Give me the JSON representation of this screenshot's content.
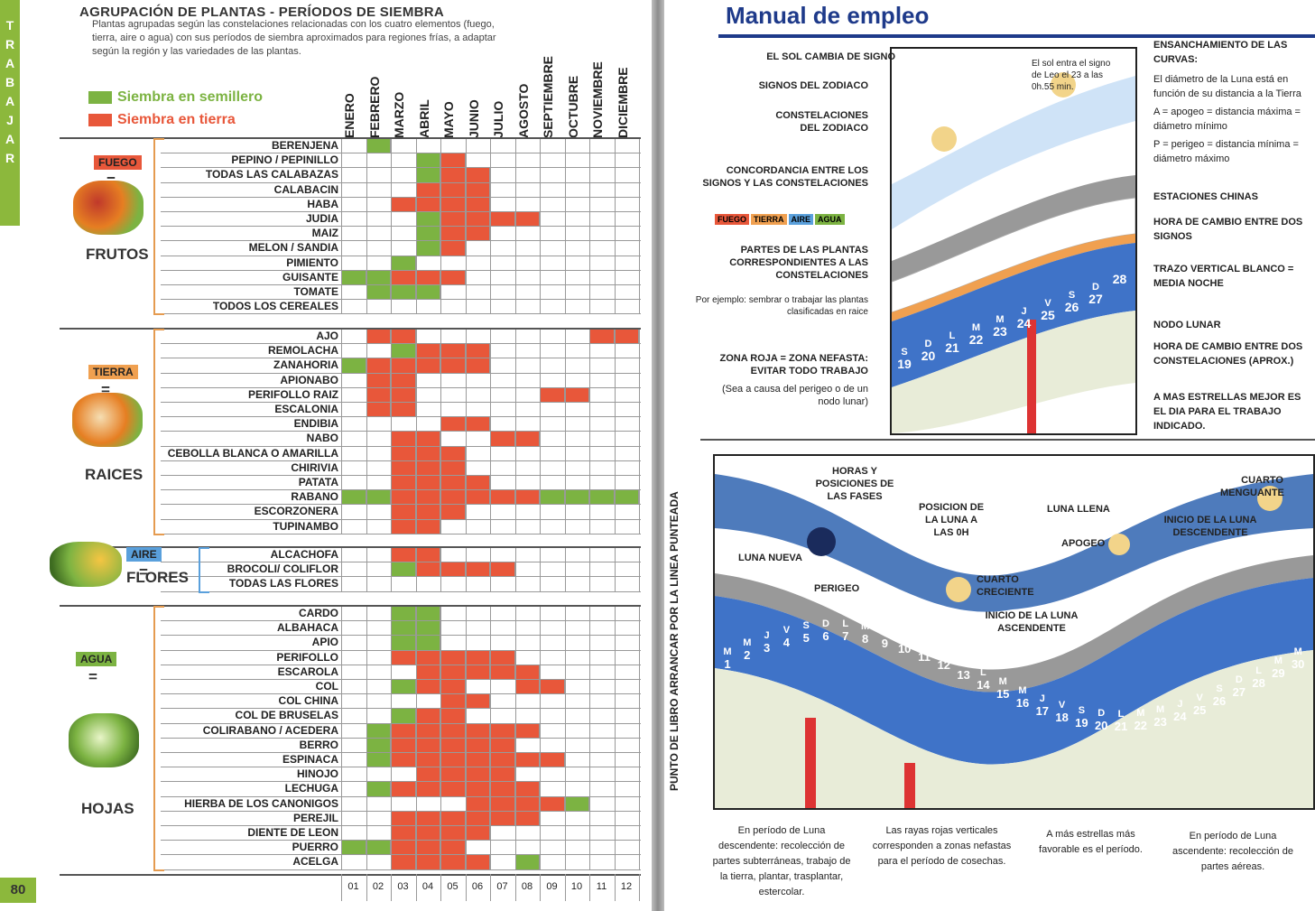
{
  "left": {
    "sidebar_letters": [
      "T",
      "R",
      "A",
      "B",
      "A",
      "J",
      "A",
      "R"
    ],
    "title": "AGRUPACIÓN DE PLANTAS - PERÍODOS DE SIEMBRA",
    "intro": "Plantas agrupadas según las constelaciones relacionadas con los cuatro elementos (fuego, tierra, aire o agua) con sus períodos de siembra aproximados para regiones frías, a adaptar según la región y las variedades de las plantas.",
    "legend": [
      {
        "label": "Siembra en semillero",
        "color": "#7cb342"
      },
      {
        "label": "Siembra en tierra",
        "color": "#e8573a"
      }
    ],
    "months": [
      "ENERO",
      "FEBRERO",
      "MARZO",
      "ABRIL",
      "MAYO",
      "JUNIO",
      "JULIO",
      "AGOSTO",
      "SEPTIEMBRE",
      "OCTUBRE",
      "NOVIEMBRE",
      "DICIEMBRE"
    ],
    "month_numbers": [
      "01",
      "02",
      "03",
      "04",
      "05",
      "06",
      "07",
      "08",
      "09",
      "10",
      "11",
      "12"
    ],
    "page_number": "80",
    "groups": [
      {
        "tag": "FUEGO",
        "tag_color": "#e8573a",
        "eq": "=",
        "name": "FRUTOS",
        "rows": [
          {
            "label": "BERENJENA",
            "cells": [
              0,
              1,
              0,
              0,
              0,
              0,
              0,
              0,
              0,
              0,
              0,
              0
            ]
          },
          {
            "label": "PEPINO / PEPINILLO",
            "cells": [
              0,
              0,
              0,
              1,
              2,
              0,
              0,
              0,
              0,
              0,
              0,
              0
            ]
          },
          {
            "label": "TODAS LAS CALABAZAS",
            "cells": [
              0,
              0,
              0,
              1,
              2,
              2,
              0,
              0,
              0,
              0,
              0,
              0
            ]
          },
          {
            "label": "CALABACIN",
            "cells": [
              0,
              0,
              0,
              2,
              2,
              2,
              0,
              0,
              0,
              0,
              0,
              0
            ]
          },
          {
            "label": "HABA",
            "cells": [
              0,
              0,
              2,
              2,
              2,
              2,
              0,
              0,
              0,
              0,
              0,
              0
            ]
          },
          {
            "label": "JUDIA",
            "cells": [
              0,
              0,
              0,
              1,
              2,
              2,
              2,
              2,
              0,
              0,
              0,
              0
            ]
          },
          {
            "label": "MAIZ",
            "cells": [
              0,
              0,
              0,
              1,
              2,
              2,
              0,
              0,
              0,
              0,
              0,
              0
            ]
          },
          {
            "label": "MELON / SANDIA",
            "cells": [
              0,
              0,
              0,
              1,
              2,
              0,
              0,
              0,
              0,
              0,
              0,
              0
            ]
          },
          {
            "label": "PIMIENTO",
            "cells": [
              0,
              0,
              1,
              0,
              0,
              0,
              0,
              0,
              0,
              0,
              0,
              0
            ]
          },
          {
            "label": "GUISANTE",
            "cells": [
              1,
              1,
              2,
              2,
              2,
              0,
              0,
              0,
              0,
              0,
              0,
              0
            ]
          },
          {
            "label": "TOMATE",
            "cells": [
              0,
              1,
              1,
              1,
              0,
              0,
              0,
              0,
              0,
              0,
              0,
              0
            ]
          },
          {
            "label": "TODOS LOS CEREALES",
            "cells": [
              0,
              0,
              0,
              0,
              0,
              0,
              0,
              0,
              0,
              0,
              0,
              0
            ]
          }
        ]
      },
      {
        "tag": "TIERRA",
        "tag_color": "#f0a050",
        "eq": "=",
        "name": "RAICES",
        "rows": [
          {
            "label": "AJO",
            "cells": [
              0,
              2,
              2,
              0,
              0,
              0,
              0,
              0,
              0,
              0,
              2,
              2
            ]
          },
          {
            "label": "REMOLACHA",
            "cells": [
              0,
              0,
              1,
              2,
              2,
              2,
              0,
              0,
              0,
              0,
              0,
              0
            ]
          },
          {
            "label": "ZANAHORIA",
            "cells": [
              1,
              2,
              2,
              2,
              2,
              2,
              0,
              0,
              0,
              0,
              0,
              0
            ]
          },
          {
            "label": "APIONABO",
            "cells": [
              0,
              2,
              2,
              0,
              0,
              0,
              0,
              0,
              0,
              0,
              0,
              0
            ]
          },
          {
            "label": "PERIFOLLO RAIZ",
            "cells": [
              0,
              2,
              2,
              0,
              0,
              0,
              0,
              0,
              2,
              2,
              0,
              0
            ]
          },
          {
            "label": "ESCALONIA",
            "cells": [
              0,
              2,
              2,
              0,
              0,
              0,
              0,
              0,
              0,
              0,
              0,
              0
            ]
          },
          {
            "label": "ENDIBIA",
            "cells": [
              0,
              0,
              0,
              0,
              2,
              2,
              0,
              0,
              0,
              0,
              0,
              0
            ]
          },
          {
            "label": "NABO",
            "cells": [
              0,
              0,
              2,
              2,
              0,
              0,
              2,
              2,
              0,
              0,
              0,
              0
            ]
          },
          {
            "label": "CEBOLLA BLANCA O AMARILLA",
            "cells": [
              0,
              0,
              2,
              2,
              2,
              0,
              0,
              0,
              0,
              0,
              0,
              0
            ]
          },
          {
            "label": "CHIRIVIA",
            "cells": [
              0,
              0,
              2,
              2,
              2,
              0,
              0,
              0,
              0,
              0,
              0,
              0
            ]
          },
          {
            "label": "PATATA",
            "cells": [
              0,
              0,
              2,
              2,
              2,
              2,
              0,
              0,
              0,
              0,
              0,
              0
            ]
          },
          {
            "label": "RABANO",
            "cells": [
              1,
              1,
              2,
              2,
              2,
              2,
              2,
              2,
              1,
              1,
              1,
              1
            ]
          },
          {
            "label": "ESCORZONERA",
            "cells": [
              0,
              0,
              2,
              2,
              2,
              0,
              0,
              0,
              0,
              0,
              0,
              0
            ]
          },
          {
            "label": "TUPINAMBO",
            "cells": [
              0,
              0,
              2,
              2,
              0,
              0,
              0,
              0,
              0,
              0,
              0,
              0
            ]
          }
        ]
      },
      {
        "tag": "AIRE",
        "tag_color": "#5aa0dc",
        "eq": "=",
        "name": "FLORES",
        "rows": [
          {
            "label": "ALCACHOFA",
            "cells": [
              0,
              0,
              2,
              2,
              0,
              0,
              0,
              0,
              0,
              0,
              0,
              0
            ]
          },
          {
            "label": "BROCOLI/ COLIFLOR",
            "cells": [
              0,
              0,
              1,
              2,
              2,
              2,
              2,
              0,
              0,
              0,
              0,
              0
            ]
          },
          {
            "label": "TODAS LAS FLORES",
            "cells": [
              0,
              0,
              0,
              0,
              0,
              0,
              0,
              0,
              0,
              0,
              0,
              0
            ]
          }
        ]
      },
      {
        "tag": "AGUA",
        "tag_color": "#7cb342",
        "eq": "=",
        "name": "HOJAS",
        "rows": [
          {
            "label": "CARDO",
            "cells": [
              0,
              0,
              1,
              1,
              0,
              0,
              0,
              0,
              0,
              0,
              0,
              0
            ]
          },
          {
            "label": "ALBAHACA",
            "cells": [
              0,
              0,
              1,
              1,
              0,
              0,
              0,
              0,
              0,
              0,
              0,
              0
            ]
          },
          {
            "label": "APIO",
            "cells": [
              0,
              0,
              1,
              1,
              0,
              0,
              0,
              0,
              0,
              0,
              0,
              0
            ]
          },
          {
            "label": "PERIFOLLO",
            "cells": [
              0,
              0,
              2,
              2,
              2,
              2,
              2,
              0,
              0,
              0,
              0,
              0
            ]
          },
          {
            "label": "ESCAROLA",
            "cells": [
              0,
              0,
              0,
              2,
              2,
              2,
              2,
              2,
              0,
              0,
              0,
              0
            ]
          },
          {
            "label": "COL",
            "cells": [
              0,
              0,
              1,
              2,
              2,
              0,
              0,
              2,
              2,
              0,
              0,
              0
            ]
          },
          {
            "label": "COL CHINA",
            "cells": [
              0,
              0,
              0,
              0,
              2,
              2,
              0,
              0,
              0,
              0,
              0,
              0
            ]
          },
          {
            "label": "COL DE BRUSELAS",
            "cells": [
              0,
              0,
              1,
              2,
              2,
              0,
              0,
              0,
              0,
              0,
              0,
              0
            ]
          },
          {
            "label": "COLIRABANO / ACEDERA",
            "cells": [
              0,
              1,
              2,
              2,
              2,
              2,
              2,
              2,
              0,
              0,
              0,
              0
            ]
          },
          {
            "label": "BERRO",
            "cells": [
              0,
              1,
              2,
              2,
              2,
              2,
              2,
              0,
              0,
              0,
              0,
              0
            ]
          },
          {
            "label": "ESPINACA",
            "cells": [
              0,
              1,
              2,
              2,
              2,
              2,
              2,
              2,
              2,
              0,
              0,
              0
            ]
          },
          {
            "label": "HINOJO",
            "cells": [
              0,
              0,
              0,
              2,
              2,
              2,
              2,
              0,
              0,
              0,
              0,
              0
            ]
          },
          {
            "label": "LECHUGA",
            "cells": [
              0,
              1,
              2,
              2,
              2,
              2,
              2,
              2,
              0,
              0,
              0,
              0
            ]
          },
          {
            "label": "HIERBA DE LOS CANONIGOS",
            "cells": [
              0,
              0,
              0,
              0,
              0,
              2,
              2,
              2,
              2,
              1,
              0,
              0
            ]
          },
          {
            "label": "PEREJIL",
            "cells": [
              0,
              0,
              2,
              2,
              2,
              2,
              2,
              2,
              0,
              0,
              0,
              0
            ]
          },
          {
            "label": "DIENTE DE LEON",
            "cells": [
              0,
              0,
              2,
              2,
              2,
              2,
              0,
              0,
              0,
              0,
              0,
              0
            ]
          },
          {
            "label": "PUERRO",
            "cells": [
              1,
              1,
              2,
              2,
              2,
              0,
              0,
              0,
              0,
              0,
              0,
              0
            ]
          },
          {
            "label": "ACELGA",
            "cells": [
              0,
              0,
              2,
              2,
              2,
              2,
              0,
              1,
              0,
              0,
              0,
              0
            ]
          }
        ]
      }
    ]
  },
  "right": {
    "title": "Manual de empleo",
    "vertical_note": "PUNTO DE LIBRO ARRANCAR POR LA LINEA PUNTEADA",
    "top_annotations_left": [
      "EL SOL CAMBIA DE SIGNO",
      "SIGNOS DEL ZODIACO",
      "CONSTELACIONES DEL ZODIACO",
      "CONCORDANCIA ENTRE LOS SIGNOS Y LAS CONSTELACIONES",
      "PARTES DE LAS PLANTAS CORRESPONDIENTES A LAS CONSTELACIONES",
      "Por ejemplo: sembrar o trabajar las plantas clasificadas en raice",
      "ZONA ROJA = ZONA NEFASTA: EVITAR TODO TRABAJO",
      "(Sea a causa del perigeo o de un nodo lunar)"
    ],
    "element_tags": [
      {
        "label": "FUEGO",
        "color": "#e8573a"
      },
      {
        "label": "TIERRA",
        "color": "#f0a050"
      },
      {
        "label": "AIRE",
        "color": "#5aa0dc"
      },
      {
        "label": "AGUA",
        "color": "#7cb342"
      }
    ],
    "top_annotations_right": [
      "ENSANCHAMIENTO DE LAS CURVAS:",
      "El diámetro de la Luna está en función de su distancia a la Tierra",
      "A = apogeo = distancia máxima = diámetro mínimo",
      "P = perigeo = distancia mínima = diámetro máximo",
      "ESTACIONES CHINAS",
      "HORA DE CAMBIO ENTRE DOS SIGNOS",
      "TRAZO VERTICAL BLANCO = MEDIA NOCHE",
      "NODO LUNAR",
      "HORA DE CAMBIO ENTRE DOS CONSTELACIONES (APROX.)",
      "A MAS ESTRELLAS MEJOR ES EL DIA PARA EL TRABAJO INDICADO."
    ],
    "top_box_note": "El sol entra el signo de Leo el 23 a las 0h.55 min.",
    "top_box_days": [
      "19",
      "20",
      "21",
      "22",
      "23",
      "24",
      "25",
      "26",
      "27",
      "28"
    ],
    "top_box_letters": [
      "S",
      "D",
      "L",
      "M",
      "M",
      "J",
      "V",
      "S",
      "D",
      ""
    ],
    "bottom_annotations": [
      "HORAS Y POSICIONES DE LAS FASES",
      "LUNA NUEVA",
      "PERIGEO",
      "POSICION DE LA LUNA A LAS 0H",
      "CUARTO CRECIENTE",
      "LUNA LLENA",
      "APOGEO",
      "INICIO DE LA LUNA DESCENDENTE",
      "CUARTO MENGUANTE",
      "INICIO DE LA LUNA ASCENDENTE"
    ],
    "bottom_days": [
      "1",
      "2",
      "3",
      "4",
      "5",
      "6",
      "7",
      "8",
      "9",
      "10",
      "11",
      "12",
      "13",
      "14",
      "15",
      "16",
      "17",
      "18",
      "19",
      "20",
      "21",
      "22",
      "23",
      "24",
      "25",
      "26",
      "27",
      "28",
      "29",
      "30"
    ],
    "bottom_letters": [
      "M",
      "M",
      "J",
      "V",
      "S",
      "D",
      "L",
      "M",
      "M",
      "J",
      "V",
      "S",
      "D",
      "L",
      "M",
      "M",
      "J",
      "V",
      "S",
      "D",
      "L",
      "M",
      "M",
      "J",
      "V",
      "S",
      "D",
      "L",
      "M",
      "M"
    ],
    "captions": [
      "En período de Luna descendente: recolección de partes subterráneas, trabajo de la tierra, plantar, trasplantar, estercolar.",
      "Las rayas rojas verticales corresponden a zonas nefastas para el período de cosechas.",
      "A más estrellas más favorable es el período.",
      "En período de Luna ascendente: recolección de partes aéreas."
    ]
  }
}
